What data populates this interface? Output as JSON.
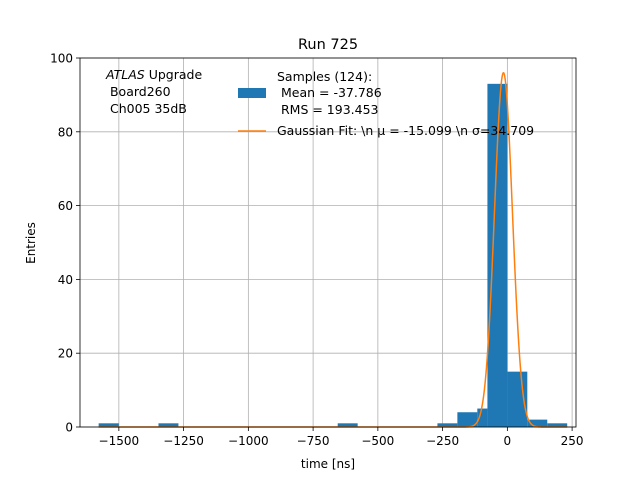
{
  "chart_data": {
    "type": "bar",
    "title": "Run 725",
    "xlabel": "time [ns]",
    "ylabel": "Entries",
    "xlim": [
      -1650,
      265
    ],
    "ylim": [
      0,
      100
    ],
    "grid": true,
    "legend_position": "top-right",
    "x_ticks": [
      -1500,
      -1250,
      -1000,
      -750,
      -500,
      -250,
      0,
      250
    ],
    "x_tick_labels": [
      "−1500",
      "−1250",
      "−1000",
      "−750",
      "−500",
      "−250",
      "0",
      "250"
    ],
    "y_ticks": [
      0,
      20,
      40,
      60,
      80,
      100
    ],
    "y_tick_labels": [
      "0",
      "20",
      "40",
      "60",
      "80",
      "100"
    ],
    "histogram": {
      "name_lines": [
        "Samples (124):",
        " Mean = -37.786",
        " RMS = 193.453"
      ],
      "color": "#1f77b4",
      "bins": [
        {
          "x0": -1578,
          "x1": -1500,
          "count": 1
        },
        {
          "x0": -1347,
          "x1": -1270,
          "count": 1
        },
        {
          "x0": -655,
          "x1": -578,
          "count": 1
        },
        {
          "x0": -270,
          "x1": -193,
          "count": 1
        },
        {
          "x0": -193,
          "x1": -116,
          "count": 4
        },
        {
          "x0": -116,
          "x1": -77,
          "count": 5
        },
        {
          "x0": -77,
          "x1": 0,
          "count": 93
        },
        {
          "x0": 0,
          "x1": 77,
          "count": 15
        },
        {
          "x0": 77,
          "x1": 154,
          "count": 2
        },
        {
          "x0": 154,
          "x1": 231,
          "count": 1
        }
      ]
    },
    "fit": {
      "type": "gaussian",
      "name": "Gaussian Fit: \\n μ = -15.099 \\n σ=34.709",
      "color": "#ff7f0e",
      "amplitude": 96,
      "mu": -15.099,
      "sigma": 34.709,
      "x_range": [
        -1578,
        231
      ]
    },
    "annotation": {
      "italic": "ATLAS",
      "rest": " Upgrade",
      "lines": [
        " Board260",
        " Ch005 35dB"
      ]
    }
  }
}
